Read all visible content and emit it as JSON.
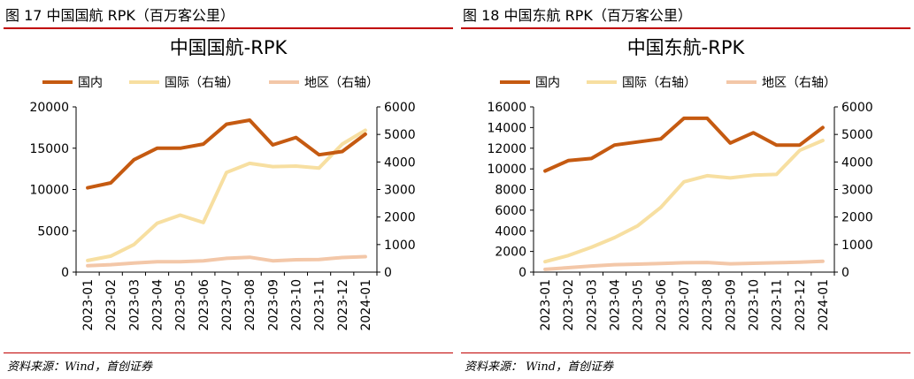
{
  "charts": [
    {
      "caption": "图 17  中国国航 RPK（百万客公里）",
      "source": "资料来源：Wind，首创证券",
      "chart_data": {
        "type": "line",
        "title": "中国国航-RPK",
        "categories": [
          "2023-01",
          "2023-02",
          "2023-03",
          "2023-04",
          "2023-05",
          "2023-06",
          "2023-07",
          "2023-08",
          "2023-09",
          "2023-10",
          "2023-11",
          "2023-12",
          "2024-01"
        ],
        "ylim": [
          0,
          20000
        ],
        "y_ticks": [
          "0",
          "5000",
          "10000",
          "15000",
          "20000"
        ],
        "y2lim": [
          0,
          6000
        ],
        "y2_ticks": [
          "0",
          "1000",
          "2000",
          "3000",
          "4000",
          "5000",
          "6000"
        ],
        "legend_position": "top",
        "grid": false,
        "series": [
          {
            "name": "国内",
            "axis": "left",
            "color": "#c55a11",
            "values": [
              10200,
              10800,
              13600,
              15000,
              15000,
              15500,
              17900,
              18400,
              15400,
              16300,
              14200,
              14600,
              16700
            ]
          },
          {
            "name": "国际（右轴）",
            "axis": "right",
            "color": "#f7dfa1",
            "values": [
              420,
              580,
              1000,
              1770,
              2070,
              1800,
              3620,
              3950,
              3830,
              3850,
              3780,
              4650,
              5150
            ]
          },
          {
            "name": "地区（右轴）",
            "axis": "right",
            "color": "#f3c7a8",
            "values": [
              230,
              270,
              330,
              380,
              380,
              410,
              500,
              540,
              410,
              450,
              460,
              530,
              560
            ]
          }
        ]
      }
    },
    {
      "caption": "图 18  中国东航 RPK（百万客公里）",
      "source": "资料来源：  Wind，首创证券",
      "chart_data": {
        "type": "line",
        "title": "中国东航-RPK",
        "categories": [
          "2023-01",
          "2023-02",
          "2023-03",
          "2023-04",
          "2023-05",
          "2023-06",
          "2023-07",
          "2023-08",
          "2023-09",
          "2023-10",
          "2023-11",
          "2023-12",
          "2024-01"
        ],
        "ylim": [
          0,
          16000
        ],
        "y_ticks": [
          "0",
          "2000",
          "4000",
          "6000",
          "8000",
          "10000",
          "12000",
          "14000",
          "16000"
        ],
        "y2lim": [
          0,
          6000
        ],
        "y2_ticks": [
          "0",
          "1000",
          "2000",
          "3000",
          "4000",
          "5000",
          "6000"
        ],
        "legend_position": "top",
        "grid": false,
        "series": [
          {
            "name": "国内",
            "axis": "left",
            "color": "#c55a11",
            "values": [
              9800,
              10800,
              11000,
              12300,
              12600,
              12900,
              14900,
              14900,
              12500,
              13500,
              12300,
              12300,
              14000
            ]
          },
          {
            "name": "国际（右轴）",
            "axis": "right",
            "color": "#f7dfa1",
            "values": [
              380,
              600,
              900,
              1250,
              1680,
              2350,
              3280,
              3500,
              3420,
              3520,
              3550,
              4420,
              4780
            ]
          },
          {
            "name": "地区（右轴）",
            "axis": "right",
            "color": "#f3c7a8",
            "values": [
              100,
              160,
              220,
              270,
              290,
              310,
              340,
              350,
              300,
              320,
              340,
              360,
              390
            ]
          }
        ]
      }
    }
  ]
}
